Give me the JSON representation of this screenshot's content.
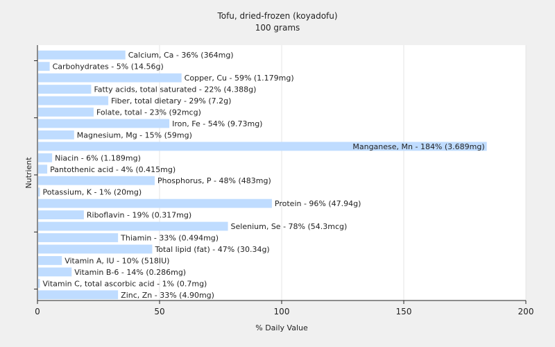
{
  "chart_data": {
    "type": "bar",
    "orientation": "horizontal",
    "title": "Tofu, dried-frozen (koyadofu)",
    "subtitle": "100 grams",
    "xlabel": "% Daily Value",
    "ylabel": "Nutrient",
    "xlim": [
      0,
      200
    ],
    "xticks": [
      0,
      50,
      100,
      150,
      200
    ],
    "grid": true,
    "bar_color": "#bfdcff",
    "categories": [
      "Calcium, Ca",
      "Carbohydrates",
      "Copper, Cu",
      "Fatty acids, total saturated",
      "Fiber, total dietary",
      "Folate, total",
      "Iron, Fe",
      "Magnesium, Mg",
      "Manganese, Mn",
      "Niacin",
      "Pantothenic acid",
      "Phosphorus, P",
      "Potassium, K",
      "Protein",
      "Riboflavin",
      "Selenium, Se",
      "Thiamin",
      "Total lipid (fat)",
      "Vitamin A, IU",
      "Vitamin B-6",
      "Vitamin C, total ascorbic acid",
      "Zinc, Zn"
    ],
    "values": [
      36,
      5,
      59,
      22,
      29,
      23,
      54,
      15,
      184,
      6,
      4,
      48,
      1,
      96,
      19,
      78,
      33,
      47,
      10,
      14,
      1,
      33
    ],
    "labels": [
      "Calcium, Ca - 36% (364mg)",
      "Carbohydrates - 5% (14.56g)",
      "Copper, Cu - 59% (1.179mg)",
      "Fatty acids, total saturated - 22% (4.388g)",
      "Fiber, total dietary - 29% (7.2g)",
      "Folate, total - 23% (92mcg)",
      "Iron, Fe - 54% (9.73mg)",
      "Magnesium, Mg - 15% (59mg)",
      "Manganese, Mn - 184% (3.689mg)",
      "Niacin - 6% (1.189mg)",
      "Pantothenic acid - 4% (0.415mg)",
      "Phosphorus, P - 48% (483mg)",
      "Potassium, K - 1% (20mg)",
      "Protein - 96% (47.94g)",
      "Riboflavin - 19% (0.317mg)",
      "Selenium, Se - 78% (54.3mcg)",
      "Thiamin - 33% (0.494mg)",
      "Total lipid (fat) - 47% (30.34g)",
      "Vitamin A, IU - 10% (518IU)",
      "Vitamin B-6 - 14% (0.286mg)",
      "Vitamin C, total ascorbic acid - 1% (0.7mg)",
      "Zinc, Zn - 33% (4.90mg)"
    ]
  }
}
